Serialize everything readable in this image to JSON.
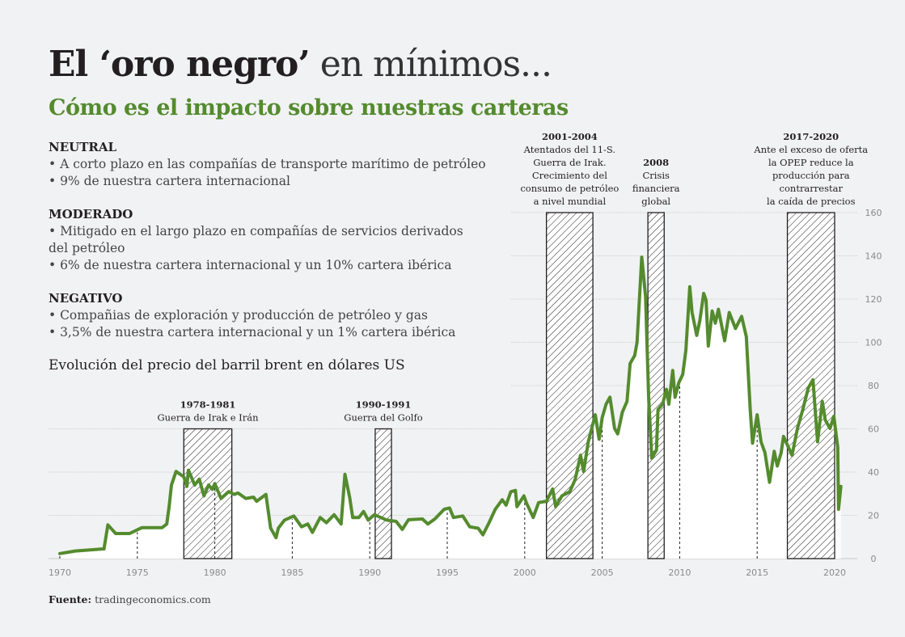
{
  "header": {
    "title_bold": "El ‘oro negro’",
    "title_light": "en mínimos...",
    "subtitle": "Cómo es el impacto sobre nuestras carteras"
  },
  "sections": [
    {
      "heading": "NEUTRAL",
      "lines": [
        "• A corto plazo en las compañías de transporte marítimo de petróleo",
        "• 9% de nuestra cartera internacional"
      ]
    },
    {
      "heading": "MODERADO",
      "lines": [
        "• Mitigado en el largo plazo en compañías de servicios derivados del petróleo",
        "• 6% de nuestra cartera internacional y un 10% cartera ibérica"
      ]
    },
    {
      "heading": "NEGATIVO",
      "lines": [
        "• Compañias de exploración y producción de petróleo y gas",
        "• 3,5% de nuestra cartera internacional y un 1% cartera ibérica"
      ]
    }
  ],
  "source": {
    "label": "Fuente:",
    "value": "tradingeconomics.com"
  },
  "colors": {
    "line": "#548b2e",
    "background": "#f1f2f4",
    "area": "#ffffff",
    "hatch": "#231f20"
  },
  "chart_data": {
    "type": "line",
    "title": "Evolución del precio del barril brent en dólares US",
    "xlabel": "",
    "ylabel": "",
    "xlim": [
      1970,
      2020.4
    ],
    "ylim": [
      0,
      160
    ],
    "xticks": [
      "1970",
      "1975",
      "1980",
      "1985",
      "1990",
      "1995",
      "2000",
      "2005",
      "2010",
      "2015",
      "2020"
    ],
    "yticks": [
      "0",
      "20",
      "40",
      "60",
      "80",
      "100",
      "120",
      "140",
      "160"
    ],
    "y_axis_position": "right",
    "grid": true,
    "area_fill": true,
    "x": [
      1970.0,
      1971.0,
      1972.85,
      1973.1,
      1973.6,
      1974.5,
      1975.3,
      1976.6,
      1976.9,
      1977.05,
      1977.2,
      1977.5,
      1978.0,
      1978.2,
      1978.3,
      1978.7,
      1979.0,
      1979.3,
      1979.6,
      1979.85,
      1980.0,
      1980.4,
      1980.9,
      1981.25,
      1981.5,
      1982.0,
      1982.5,
      1982.7,
      1983.3,
      1983.6,
      1983.95,
      1984.1,
      1984.5,
      1985.1,
      1985.6,
      1986.0,
      1986.3,
      1986.8,
      1987.2,
      1987.7,
      1988.15,
      1988.4,
      1988.7,
      1988.9,
      1989.3,
      1989.6,
      1989.9,
      1990.3,
      1991.1,
      1991.7,
      1992.1,
      1992.5,
      1993.4,
      1993.75,
      1994.2,
      1994.8,
      1995.15,
      1995.4,
      1996.0,
      1996.45,
      1997.0,
      1997.3,
      1997.7,
      1998.1,
      1998.55,
      1998.8,
      1999.1,
      1999.4,
      1999.5,
      1999.95,
      2000.1,
      2000.55,
      2000.9,
      2001.4,
      2001.8,
      2002.0,
      2002.4,
      2002.9,
      2003.25,
      2003.6,
      2003.8,
      2004.1,
      2004.55,
      2004.8,
      2005.0,
      2005.25,
      2005.5,
      2005.8,
      2006.0,
      2006.3,
      2006.6,
      2006.8,
      2007.1,
      2007.25,
      2007.55,
      2007.8,
      2008.0,
      2008.2,
      2008.5,
      2008.6,
      2008.9,
      2009.15,
      2009.3,
      2009.55,
      2009.7,
      2009.95,
      2010.2,
      2010.4,
      2010.65,
      2010.8,
      2011.1,
      2011.3,
      2011.55,
      2011.7,
      2011.85,
      2012.1,
      2012.3,
      2012.5,
      2012.9,
      2013.2,
      2013.6,
      2014.0,
      2014.3,
      2014.55,
      2014.7,
      2015.0,
      2015.25,
      2015.5,
      2015.8,
      2016.1,
      2016.3,
      2016.55,
      2016.7,
      2017.25,
      2017.6,
      2017.95,
      2018.3,
      2018.6,
      2018.9,
      2019.2,
      2019.4,
      2019.7,
      2019.95,
      2020.2,
      2020.25,
      2020.4
    ],
    "series": [
      {
        "values": [
          2.3,
          3.5,
          4.5,
          15.6,
          11.6,
          11.6,
          14.3,
          14.3,
          16,
          24,
          34,
          40.3,
          37.8,
          33.4,
          40.9,
          34,
          36.7,
          29,
          34,
          32,
          34.7,
          27.8,
          31,
          29.7,
          30.3,
          27.8,
          28.4,
          26.5,
          29.7,
          14.1,
          9.7,
          14.1,
          17.8,
          19.7,
          14.7,
          16,
          12.1,
          19,
          16.6,
          20.3,
          16,
          39,
          28.4,
          19,
          19,
          21.8,
          17.8,
          20.3,
          17.8,
          17.2,
          13.5,
          18,
          18.3,
          16,
          18.3,
          22.8,
          23.4,
          19,
          19.7,
          14.7,
          14,
          11,
          16.6,
          22.8,
          27.2,
          24.7,
          30.9,
          31.5,
          24,
          29,
          25.9,
          19,
          25.9,
          26.5,
          32.2,
          24,
          29,
          30.9,
          36.5,
          47.8,
          40.3,
          54,
          66.5,
          55.2,
          65.2,
          71.4,
          74.6,
          60.2,
          57.7,
          67.7,
          72.7,
          90.2,
          93.9,
          100,
          139.4,
          121.3,
          73.9,
          46.5,
          50.2,
          69,
          71.4,
          78.3,
          71.4,
          87,
          74.6,
          81.4,
          85.2,
          96.4,
          125.7,
          113.8,
          103.2,
          110,
          122.6,
          119.5,
          98.3,
          114.5,
          108.9,
          115.3,
          100.7,
          113.8,
          106.4,
          112,
          102.6,
          69,
          53.4,
          66.5,
          54,
          49,
          35.3,
          49.6,
          42.8,
          49,
          56.5,
          47.8,
          60.2,
          69,
          78.9,
          82.7,
          54,
          72.7,
          64,
          60.2,
          65.8,
          51.5,
          22.8,
          33.4
        ]
      }
    ],
    "annotations": [
      {
        "period": "1978-1981",
        "start": 1978.0,
        "end": 1981.1,
        "top": 60,
        "lines": [
          "Guerra de Irak e Irán"
        ]
      },
      {
        "period": "1990-1991",
        "start": 1990.35,
        "end": 1991.4,
        "top": 60,
        "lines": [
          "Guerra del Golfo"
        ]
      },
      {
        "period": "2001-2004",
        "start": 2001.4,
        "end": 2004.4,
        "top": 160,
        "lines": [
          "Atentados del 11-S.",
          "Guerra de Irak.",
          "Crecimiento del",
          "consumo de petróleo",
          "a nivel mundial"
        ]
      },
      {
        "period": "2008",
        "start": 2007.95,
        "end": 2009.0,
        "top": 160,
        "lines": [
          "Crisis",
          "financiera",
          "global"
        ]
      },
      {
        "period": "2017-2020",
        "start": 2016.95,
        "end": 2020.0,
        "top": 160,
        "lines": [
          "Ante el exceso de oferta",
          "la OPEP reduce la",
          "producción para",
          "contrarrestar",
          "la caída de precios"
        ]
      }
    ]
  }
}
